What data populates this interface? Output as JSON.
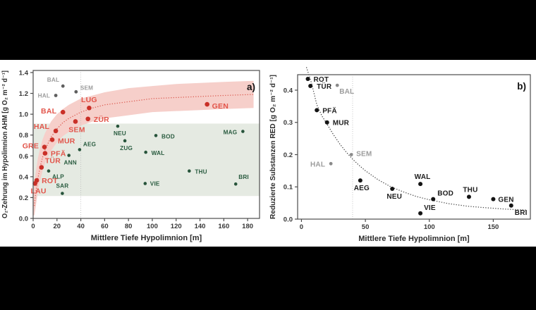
{
  "figure": {
    "letterbox_color": "#000000",
    "canvas_color": "#ffffff",
    "frame_color": "#4c4c4c",
    "tick_text_color": "#383838",
    "axis_title_color": "#2b2b2b"
  },
  "chart_data": [
    {
      "id": "a",
      "type": "scatter",
      "panel_label": "a)",
      "xlabel": "Mittlere Tiefe Hypolimnion [m]",
      "ylabel": "O₂-Zehrung im Hypolimnion AHM [g O₂ m⁻² d⁻¹]",
      "xlim": [
        0,
        190
      ],
      "ylim": [
        0,
        1.42
      ],
      "xticks": [
        0,
        20,
        40,
        60,
        80,
        100,
        120,
        140,
        160,
        180
      ],
      "xtick_labels": [
        "0",
        "20",
        "40",
        "60",
        "80",
        "100",
        "120",
        "140",
        "160",
        "180"
      ],
      "yticks": [
        0,
        0.2,
        0.4,
        0.6,
        0.8,
        1.0,
        1.2,
        1.4
      ],
      "ytick_labels": [
        "0.0",
        "0.2",
        "0.4",
        "0.6",
        "0.8",
        "1.0",
        "1.2",
        "1.4"
      ],
      "vline_x": 40,
      "vline_color": "#bbbbbb",
      "hband": {
        "y0": 0.215,
        "y1": 0.91,
        "color": "#e5eae2"
      },
      "trend_band": {
        "color": "#f6cfca",
        "upper": [
          [
            0.3,
            0.26
          ],
          [
            1,
            0.34
          ],
          [
            2,
            0.43
          ],
          [
            4,
            0.58
          ],
          [
            6,
            0.68
          ],
          [
            8,
            0.76
          ],
          [
            10,
            0.82
          ],
          [
            15,
            0.93
          ],
          [
            20,
            1.0
          ],
          [
            25,
            1.05
          ],
          [
            30,
            1.09
          ],
          [
            40,
            1.15
          ],
          [
            50,
            1.18
          ],
          [
            60,
            1.21
          ],
          [
            80,
            1.25
          ],
          [
            100,
            1.27
          ],
          [
            120,
            1.29
          ],
          [
            140,
            1.3
          ],
          [
            160,
            1.31
          ],
          [
            185,
            1.32
          ]
        ],
        "lower": [
          [
            0.3,
            0.03
          ],
          [
            1,
            0.03
          ],
          [
            2,
            0.1
          ],
          [
            4,
            0.26
          ],
          [
            6,
            0.37
          ],
          [
            8,
            0.46
          ],
          [
            10,
            0.53
          ],
          [
            15,
            0.65
          ],
          [
            20,
            0.73
          ],
          [
            25,
            0.79
          ],
          [
            30,
            0.83
          ],
          [
            40,
            0.89
          ],
          [
            50,
            0.93
          ],
          [
            60,
            0.96
          ],
          [
            80,
            0.99
          ],
          [
            100,
            1.02
          ],
          [
            120,
            1.03
          ],
          [
            140,
            1.04
          ],
          [
            160,
            1.05
          ],
          [
            185,
            1.06
          ]
        ]
      },
      "trend": {
        "color": "#dd6157",
        "points": [
          [
            1,
            0.125
          ],
          [
            2,
            0.23
          ],
          [
            4,
            0.385
          ],
          [
            6,
            0.5
          ],
          [
            8,
            0.59
          ],
          [
            10,
            0.66
          ],
          [
            15,
            0.78
          ],
          [
            20,
            0.86
          ],
          [
            25,
            0.92
          ],
          [
            30,
            0.96
          ],
          [
            35,
            0.99
          ],
          [
            40,
            1.02
          ],
          [
            50,
            1.06
          ],
          [
            60,
            1.09
          ],
          [
            80,
            1.12
          ],
          [
            100,
            1.15
          ],
          [
            120,
            1.16
          ],
          [
            140,
            1.17
          ],
          [
            160,
            1.18
          ],
          [
            185,
            1.19
          ]
        ]
      },
      "series": [
        {
          "name": "seen-rot",
          "marker_color": "#c93028",
          "label_color": "#e2544a",
          "marker_r": 3.3,
          "label_size": 10.5,
          "points": [
            {
              "label": "LAU",
              "x": 1.5,
              "y": 0.335,
              "dx": -6,
              "dy": 14,
              "anchor": "start"
            },
            {
              "label": "ROT",
              "x": 3,
              "y": 0.365,
              "dx": 7,
              "dy": 4,
              "anchor": "start"
            },
            {
              "label": "TÜR",
              "x": 7,
              "y": 0.49,
              "dx": 5,
              "dy": -6,
              "anchor": "start"
            },
            {
              "label": "PFÄ",
              "x": 10,
              "y": 0.625,
              "dx": 8,
              "dy": 4,
              "anchor": "start"
            },
            {
              "label": "GRE",
              "x": 9.5,
              "y": 0.685,
              "dx": -8,
              "dy": 2,
              "anchor": "end"
            },
            {
              "label": "MUR",
              "x": 16,
              "y": 0.755,
              "dx": 8,
              "dy": 5,
              "anchor": "start"
            },
            {
              "label": "HAL",
              "x": 19,
              "y": 0.84,
              "dx": -9,
              "dy": -3,
              "anchor": "end"
            },
            {
              "label": "BAL",
              "x": 25,
              "y": 1.02,
              "dx": -9,
              "dy": 2,
              "anchor": "end"
            },
            {
              "label": "SEM",
              "x": 35.5,
              "y": 0.93,
              "dx": 2,
              "dy": 15,
              "anchor": "middle"
            },
            {
              "label": "LUG",
              "x": 47,
              "y": 1.06,
              "dx": 0,
              "dy": -8,
              "anchor": "middle"
            },
            {
              "label": "ZÜR",
              "x": 46,
              "y": 0.955,
              "dx": 8,
              "dy": 4,
              "anchor": "start"
            },
            {
              "label": "GEN",
              "x": 146,
              "y": 1.095,
              "dx": 7,
              "dy": 6,
              "anchor": "start"
            }
          ]
        },
        {
          "name": "seen-grau",
          "marker_color": "#5f5f5f",
          "label_color": "#9c9c9c",
          "marker_r": 2.4,
          "label_size": 8.2,
          "points": [
            {
              "label": "HAL",
              "x": 19,
              "y": 1.18,
              "dx": -8,
              "dy": 3,
              "anchor": "end"
            },
            {
              "label": "BAL",
              "x": 25,
              "y": 1.27,
              "dx": -5,
              "dy": -6,
              "anchor": "end"
            },
            {
              "label": "SEM",
              "x": 36,
              "y": 1.215,
              "dx": 6,
              "dy": -3,
              "anchor": "start"
            }
          ]
        },
        {
          "name": "seen-gruen",
          "marker_color": "#27543b",
          "label_color": "#2a5c40",
          "marker_r": 2.3,
          "label_size": 8.2,
          "points": [
            {
              "label": "ALP",
              "x": 13,
              "y": 0.455,
              "dx": 5,
              "dy": 11,
              "anchor": "start"
            },
            {
              "label": "SAR",
              "x": 24.5,
              "y": 0.24,
              "dx": 0,
              "dy": -8,
              "anchor": "middle"
            },
            {
              "label": "ANN",
              "x": 30,
              "y": 0.605,
              "dx": 2,
              "dy": 13,
              "anchor": "middle"
            },
            {
              "label": "AEG",
              "x": 39,
              "y": 0.66,
              "dx": 5,
              "dy": -5,
              "anchor": "start"
            },
            {
              "label": "NEU",
              "x": 71,
              "y": 0.885,
              "dx": 3,
              "dy": 13,
              "anchor": "middle"
            },
            {
              "label": "ZUG",
              "x": 77,
              "y": 0.745,
              "dx": 2,
              "dy": 13,
              "anchor": "middle"
            },
            {
              "label": "BOD",
              "x": 103,
              "y": 0.795,
              "dx": 8,
              "dy": 4,
              "anchor": "start"
            },
            {
              "label": "WAL",
              "x": 94.5,
              "y": 0.635,
              "dx": 8,
              "dy": 4,
              "anchor": "start"
            },
            {
              "label": "VIE",
              "x": 94,
              "y": 0.335,
              "dx": 7,
              "dy": 3,
              "anchor": "start"
            },
            {
              "label": "THU",
              "x": 131,
              "y": 0.455,
              "dx": 8,
              "dy": 4,
              "anchor": "start"
            },
            {
              "label": "MAG",
              "x": 176,
              "y": 0.835,
              "dx": -8,
              "dy": 4,
              "anchor": "end"
            },
            {
              "label": "BRI",
              "x": 170,
              "y": 0.33,
              "dx": 4,
              "dy": -7,
              "anchor": "start"
            }
          ]
        }
      ]
    },
    {
      "id": "b",
      "type": "scatter",
      "panel_label": "b)",
      "xlabel": "Mittlere Tiefe Hypolimnion [m]",
      "ylabel": "Reduzierte Substanzen RED [g O₂ m⁻² d⁻¹]",
      "xlim": [
        -3,
        179
      ],
      "ylim": [
        0,
        0.448
      ],
      "xticks": [
        0,
        50,
        100,
        150
      ],
      "xtick_labels": [
        "0",
        "50",
        "100",
        "150"
      ],
      "yticks": [
        0,
        0.1,
        0.2,
        0.3,
        0.4
      ],
      "ytick_labels": [
        "0.0",
        "0.1",
        "0.2",
        "0.3",
        "0.4"
      ],
      "vline_x": 40,
      "vline_color": "#bbbbbb",
      "hband": null,
      "trend_band": null,
      "trend": {
        "color": "#4a4a4a",
        "points": [
          [
            4,
            0.47
          ],
          [
            8,
            0.42
          ],
          [
            12,
            0.355
          ],
          [
            16,
            0.32
          ],
          [
            20,
            0.295
          ],
          [
            25,
            0.262
          ],
          [
            30,
            0.233
          ],
          [
            35,
            0.208
          ],
          [
            40,
            0.186
          ],
          [
            45,
            0.167
          ],
          [
            50,
            0.15
          ],
          [
            60,
            0.122
          ],
          [
            70,
            0.1
          ],
          [
            80,
            0.084
          ],
          [
            90,
            0.07
          ],
          [
            100,
            0.06
          ],
          [
            115,
            0.048
          ],
          [
            130,
            0.04
          ],
          [
            145,
            0.035
          ],
          [
            160,
            0.031
          ],
          [
            176,
            0.028
          ]
        ]
      },
      "series": [
        {
          "name": "seen-schwarz",
          "marker_color": "#141414",
          "label_color": "#1d1d1d",
          "marker_r": 3.0,
          "label_size": 10,
          "points": [
            {
              "label": "ROT",
              "x": 5,
              "y": 0.435,
              "dx": 8,
              "dy": 4,
              "anchor": "start"
            },
            {
              "label": "TÜR",
              "x": 7,
              "y": 0.413,
              "dx": 9,
              "dy": 4,
              "anchor": "start"
            },
            {
              "label": "PFÄ",
              "x": 12,
              "y": 0.338,
              "dx": 8,
              "dy": 4,
              "anchor": "start"
            },
            {
              "label": "MUR",
              "x": 20,
              "y": 0.3,
              "dx": 8,
              "dy": 4,
              "anchor": "start"
            },
            {
              "label": "AEG",
              "x": 46,
              "y": 0.12,
              "dx": 2,
              "dy": 14,
              "anchor": "middle"
            },
            {
              "label": "NEU",
              "x": 71,
              "y": 0.094,
              "dx": 3,
              "dy": 14,
              "anchor": "middle"
            },
            {
              "label": "WAL",
              "x": 93,
              "y": 0.109,
              "dx": 3,
              "dy": -7,
              "anchor": "middle"
            },
            {
              "label": "VIE",
              "x": 93,
              "y": 0.018,
              "dx": 5,
              "dy": -5,
              "anchor": "start"
            },
            {
              "label": "BOD",
              "x": 103,
              "y": 0.062,
              "dx": 6,
              "dy": -5,
              "anchor": "start"
            },
            {
              "label": "THU",
              "x": 131,
              "y": 0.069,
              "dx": 2,
              "dy": -7,
              "anchor": "middle"
            },
            {
              "label": "GEN",
              "x": 150,
              "y": 0.062,
              "dx": 7,
              "dy": 4,
              "anchor": "start"
            },
            {
              "label": "BRI",
              "x": 164,
              "y": 0.042,
              "dx": 5,
              "dy": 13,
              "anchor": "start"
            }
          ]
        },
        {
          "name": "seen-grau",
          "marker_color": "#8a8a8a",
          "label_color": "#9c9c9c",
          "marker_r": 2.4,
          "label_size": 10,
          "points": [
            {
              "label": "BAL",
              "x": 28,
              "y": 0.415,
              "dx": 3,
              "dy": 12,
              "anchor": "start"
            },
            {
              "label": "HAL",
              "x": 23,
              "y": 0.172,
              "dx": -8,
              "dy": 4,
              "anchor": "end"
            },
            {
              "label": "SEM",
              "x": 39,
              "y": 0.2,
              "dx": 7,
              "dy": 2,
              "anchor": "start"
            }
          ]
        }
      ]
    }
  ]
}
